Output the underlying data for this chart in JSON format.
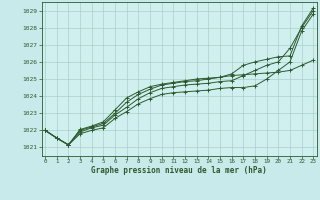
{
  "xlabel": "Graphe pression niveau de la mer (hPa)",
  "ylim": [
    1020.5,
    1029.5
  ],
  "xlim": [
    -0.3,
    23.3
  ],
  "yticks": [
    1021,
    1022,
    1023,
    1024,
    1025,
    1026,
    1027,
    1028,
    1029
  ],
  "xticks": [
    0,
    1,
    2,
    3,
    4,
    5,
    6,
    7,
    8,
    9,
    10,
    11,
    12,
    13,
    14,
    15,
    16,
    17,
    18,
    19,
    20,
    21,
    22,
    23
  ],
  "bg_color": "#c8eaea",
  "plot_bg": "#d0f0f0",
  "line_color": "#2d5a2d",
  "grid_color": "#a0c8c0",
  "lines": [
    [
      1022.0,
      1021.55,
      1021.15,
      1021.8,
      1022.0,
      1022.15,
      1022.7,
      1023.1,
      1023.55,
      1023.85,
      1024.1,
      1024.2,
      1024.25,
      1024.3,
      1024.35,
      1024.45,
      1024.5,
      1024.5,
      1024.6,
      1025.0,
      1025.5,
      1026.0,
      1027.8,
      1028.8
    ],
    [
      1022.0,
      1021.55,
      1021.15,
      1021.9,
      1022.15,
      1022.3,
      1022.9,
      1023.35,
      1023.85,
      1024.2,
      1024.45,
      1024.55,
      1024.65,
      1024.7,
      1024.75,
      1024.85,
      1024.9,
      1025.2,
      1025.5,
      1025.8,
      1026.0,
      1026.8,
      1028.0,
      1029.0
    ],
    [
      1022.0,
      1021.55,
      1021.15,
      1022.0,
      1022.2,
      1022.4,
      1023.0,
      1023.65,
      1024.1,
      1024.4,
      1024.65,
      1024.75,
      1024.85,
      1024.9,
      1025.0,
      1025.1,
      1025.3,
      1025.8,
      1026.0,
      1026.15,
      1026.3,
      1026.35,
      1028.1,
      1029.15
    ],
    [
      1022.0,
      1021.55,
      1021.15,
      1022.05,
      1022.25,
      1022.5,
      1023.2,
      1023.9,
      1024.25,
      1024.55,
      1024.7,
      1024.8,
      1024.9,
      1025.0,
      1025.05,
      1025.1,
      1025.2,
      1025.25,
      1025.3,
      1025.35,
      1025.4,
      1025.5,
      1025.8,
      1026.1
    ]
  ]
}
